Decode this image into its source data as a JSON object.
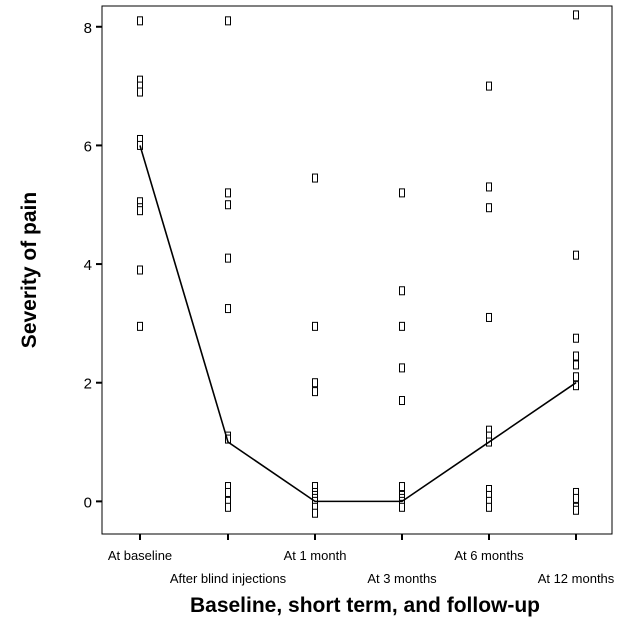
{
  "chart_data": {
    "type": "scatter",
    "xlabel": "Baseline, short term, and follow-up",
    "ylabel": "Severity of pain",
    "categories": [
      "At baseline",
      "After blind injections",
      "At 1 month",
      "At 3 months",
      "At 6 months",
      "At 12 months"
    ],
    "yticks": [
      "0",
      "2",
      "4",
      "6",
      "8"
    ],
    "ylim": [
      -0.55,
      8.35
    ],
    "grid": false,
    "points": [
      [
        8.1,
        7.1,
        7.0,
        6.9,
        6.1,
        6.0,
        5.05,
        4.95,
        4.9,
        3.9,
        2.95
      ],
      [
        8.1,
        5.2,
        5.0,
        4.1,
        3.25,
        1.1,
        1.05,
        0.25,
        0.15,
        0.0,
        -0.1
      ],
      [
        5.45,
        2.95,
        2.0,
        1.85,
        0.25,
        0.15,
        0.1,
        0.05,
        0.0,
        -0.1,
        -0.2
      ],
      [
        5.2,
        3.55,
        2.95,
        2.25,
        1.7,
        0.25,
        0.1,
        0.05,
        0.0,
        -0.05,
        -0.1
      ],
      [
        7.0,
        5.3,
        4.95,
        3.1,
        1.2,
        1.1,
        1.0,
        0.2,
        0.1,
        0.0,
        -0.1
      ],
      [
        8.2,
        4.15,
        2.75,
        2.45,
        2.3,
        2.1,
        1.95,
        0.15,
        0.05,
        -0.1,
        -0.15
      ]
    ],
    "series": [
      {
        "values": [
          6,
          1,
          0,
          0,
          1,
          2
        ]
      }
    ]
  }
}
